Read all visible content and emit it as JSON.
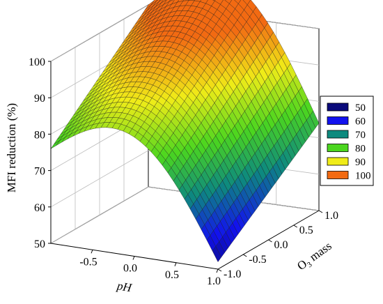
{
  "chart_data": {
    "type": "surface3d",
    "title": "",
    "zlabel": "MFI reduction (%)",
    "xlabel": "pH",
    "ylabel_main": "O",
    "ylabel_sub": "3",
    "ylabel_tail": " mass",
    "xlim": [
      -1.0,
      1.0
    ],
    "ylim": [
      -1.0,
      1.0
    ],
    "zlim": [
      50,
      100
    ],
    "x_ticks": [
      "-0.5",
      "0.0",
      "0.5",
      "1.0"
    ],
    "y_ticks": [
      "-1.0",
      "-0.5",
      "0.0",
      "0.5",
      "1.0"
    ],
    "z_ticks": [
      "50",
      "60",
      "70",
      "80",
      "90",
      "100"
    ],
    "corner_values": {
      "pH_-1_O3_1": 76,
      "pH_-1_O3_-1": 100,
      "pH_1_O3_-1": 52,
      "pH_1_O3_1": 74
    },
    "legend": {
      "placement": "right",
      "entries": [
        {
          "label": "50",
          "color": "#0a0a7a"
        },
        {
          "label": "60",
          "color": "#1212ee"
        },
        {
          "label": "70",
          "color": "#0d8a7e"
        },
        {
          "label": "80",
          "color": "#4bd61f"
        },
        {
          "label": "90",
          "color": "#f0ec18"
        },
        {
          "label": "100",
          "color": "#f26a12"
        }
      ]
    },
    "grid": true
  }
}
